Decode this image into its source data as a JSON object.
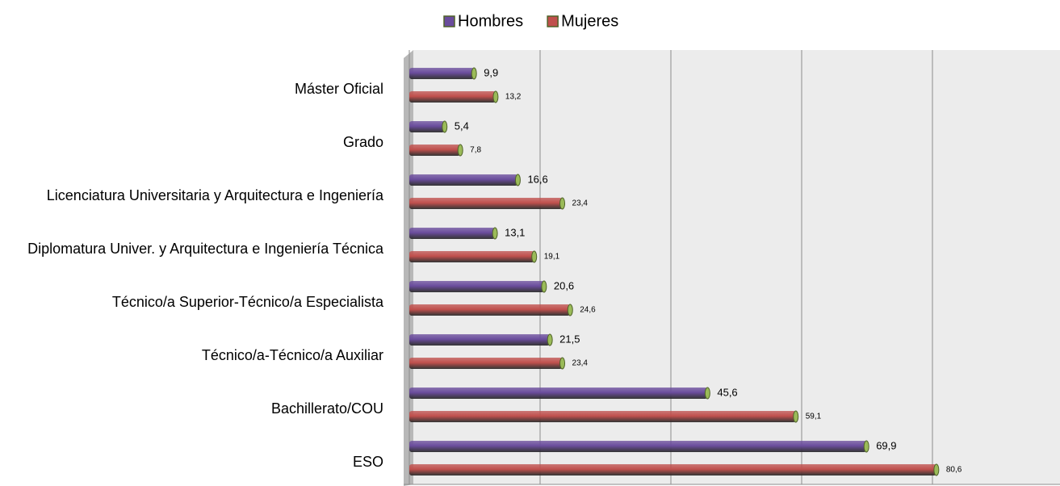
{
  "chart_data": {
    "type": "bar",
    "orientation": "horizontal",
    "categories": [
      "Máster Oficial",
      "Grado",
      "Licenciatura Universitaria y Arquitectura e Ingeniería",
      "Diplomatura Univer. y Arquitectura e Ingeniería Técnica",
      "Técnico/a Superior-Técnico/a Especialista",
      "Técnico/a-Técnico/a Auxiliar",
      "Bachillerato/COU",
      "ESO"
    ],
    "series": [
      {
        "name": "Hombres",
        "color": "#6a4c9c",
        "values": [
          9.9,
          5.4,
          16.6,
          13.1,
          20.6,
          21.5,
          45.6,
          69.9
        ],
        "value_labels": [
          "9,9",
          "5,4",
          "16,6",
          "13,1",
          "20,6",
          "21,5",
          "45,6",
          "69,9"
        ]
      },
      {
        "name": "Mujeres",
        "color": "#c0504d",
        "values": [
          13.2,
          7.8,
          23.4,
          19.1,
          24.6,
          23.4,
          59.1,
          80.6
        ],
        "value_labels": [
          "13,2",
          "7,8",
          "23,4",
          "19,1",
          "24,6",
          "23,4",
          "59,1",
          "80,6"
        ]
      }
    ],
    "xlim": [
      0,
      100
    ],
    "xticks": [
      0,
      20,
      40,
      60,
      80,
      100
    ],
    "grid": true,
    "legend": "top"
  }
}
